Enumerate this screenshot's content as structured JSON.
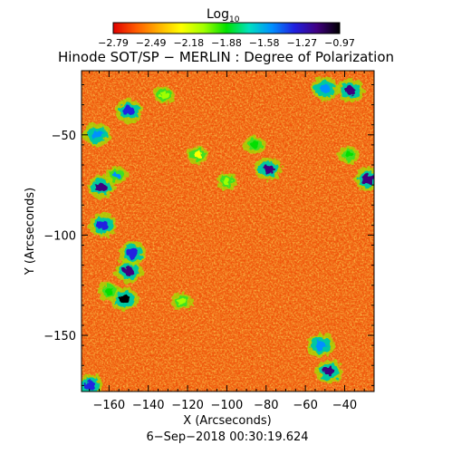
{
  "colorbar": {
    "label_main": "Log",
    "label_sub": "10",
    "ticks": [
      "−2.79",
      "−2.49",
      "−2.18",
      "−1.88",
      "−1.58",
      "−1.27",
      "−0.97"
    ],
    "range": [
      -2.79,
      -0.97
    ],
    "colors": [
      "#e00000",
      "#ff5a00",
      "#ffb000",
      "#ffff00",
      "#a0ff00",
      "#00e000",
      "#00e0c0",
      "#0090ff",
      "#2020e0",
      "#400080",
      "#000000"
    ]
  },
  "title": "Hinode SOT/SP − MERLIN : Degree of Polarization",
  "date": "6−Sep−2018 00:30:19.624",
  "chart_data": {
    "type": "heatmap",
    "title": "Hinode SOT/SP − MERLIN : Degree of Polarization",
    "xlabel": "X (Arcseconds)",
    "ylabel": "Y (Arcseconds)",
    "xlim": [
      -174,
      -25
    ],
    "ylim": [
      -178,
      -18
    ],
    "xticks": [
      -160,
      -140,
      -120,
      -100,
      -80,
      -60,
      -40
    ],
    "xtick_labels": [
      "−160",
      "−140",
      "−120",
      "−100",
      "−80",
      "−60",
      "−40"
    ],
    "yticks": [
      -50,
      -100,
      -150
    ],
    "ytick_labels": [
      "−50",
      "−100",
      "−150"
    ],
    "colorscale": "rainbow (log10 degree of polarization)",
    "value_range": [
      -2.79,
      -0.97
    ],
    "background_level": -2.55,
    "features": [
      {
        "x": -152,
        "y": -132,
        "level": -1.05
      },
      {
        "x": -150,
        "y": -118,
        "level": -1.15
      },
      {
        "x": -163,
        "y": -95,
        "level": -1.25
      },
      {
        "x": -148,
        "y": -109,
        "level": -1.3
      },
      {
        "x": -166,
        "y": -50,
        "level": -1.55
      },
      {
        "x": -164,
        "y": -76,
        "level": -1.2
      },
      {
        "x": -156,
        "y": -70,
        "level": -1.6
      },
      {
        "x": -150,
        "y": -38,
        "level": -1.3
      },
      {
        "x": -160,
        "y": -128,
        "level": -1.9
      },
      {
        "x": -79,
        "y": -67,
        "level": -1.15
      },
      {
        "x": -86,
        "y": -55,
        "level": -1.9
      },
      {
        "x": -100,
        "y": -73,
        "level": -2.0
      },
      {
        "x": -37,
        "y": -28,
        "level": -1.15
      },
      {
        "x": -50,
        "y": -27,
        "level": -1.5
      },
      {
        "x": -28,
        "y": -72,
        "level": -1.1
      },
      {
        "x": -38,
        "y": -60,
        "level": -1.9
      },
      {
        "x": -52,
        "y": -155,
        "level": -1.45
      },
      {
        "x": -48,
        "y": -168,
        "level": -1.2
      },
      {
        "x": -170,
        "y": -175,
        "level": -1.3
      },
      {
        "x": -123,
        "y": -133,
        "level": -2.05
      },
      {
        "x": -115,
        "y": -60,
        "level": -2.2
      },
      {
        "x": -132,
        "y": -30,
        "level": -2.1
      }
    ]
  }
}
